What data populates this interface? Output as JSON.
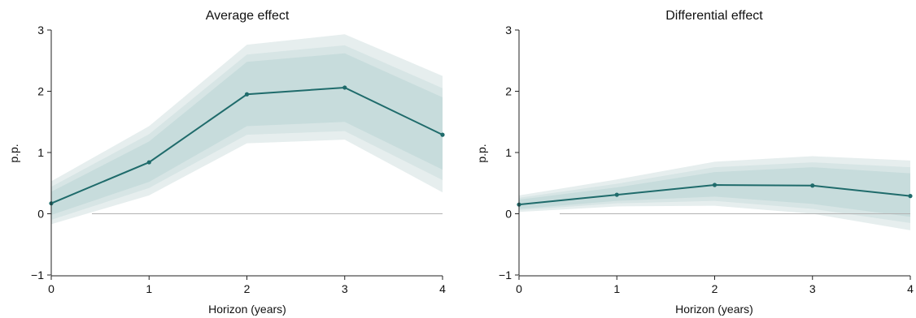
{
  "chart_data": [
    {
      "type": "line",
      "title": "Average effect",
      "xlabel": "Horizon (years)",
      "ylabel": "p.p.",
      "xlim": [
        0,
        4
      ],
      "ylim": [
        -1,
        3
      ],
      "xticks": [
        "0",
        "1",
        "2",
        "3",
        "4"
      ],
      "yticks": [
        "−1",
        "0",
        "1",
        "2",
        "3"
      ],
      "zero_line": true,
      "series": [
        {
          "x": [
            0,
            1,
            2,
            3,
            4
          ],
          "values": [
            0.17,
            0.84,
            1.95,
            2.06,
            1.29
          ],
          "bands": [
            {
              "lower": [
                -0.17,
                0.3,
                1.15,
                1.21,
                0.35
              ],
              "upper": [
                0.53,
                1.43,
                2.76,
                2.93,
                2.25
              ]
            },
            {
              "lower": [
                -0.1,
                0.42,
                1.29,
                1.35,
                0.55
              ],
              "upper": [
                0.44,
                1.3,
                2.6,
                2.75,
                2.05
              ]
            },
            {
              "lower": [
                -0.02,
                0.52,
                1.43,
                1.5,
                0.72
              ],
              "upper": [
                0.36,
                1.18,
                2.48,
                2.62,
                1.9
              ]
            }
          ]
        }
      ]
    },
    {
      "type": "line",
      "title": "Differential effect",
      "xlabel": "Horizon (years)",
      "ylabel": "p.p.",
      "xlim": [
        0,
        4
      ],
      "ylim": [
        -1,
        3
      ],
      "xticks": [
        "0",
        "1",
        "2",
        "3",
        "4"
      ],
      "yticks": [
        "−1",
        "0",
        "1",
        "2",
        "3"
      ],
      "zero_line": true,
      "series": [
        {
          "x": [
            0,
            1,
            2,
            3,
            4
          ],
          "values": [
            0.15,
            0.31,
            0.47,
            0.46,
            0.29
          ],
          "bands": [
            {
              "lower": [
                0.03,
                0.12,
                0.13,
                0.0,
                -0.27
              ],
              "upper": [
                0.3,
                0.56,
                0.85,
                0.94,
                0.87
              ]
            },
            {
              "lower": [
                0.06,
                0.17,
                0.21,
                0.08,
                -0.15
              ],
              "upper": [
                0.26,
                0.49,
                0.76,
                0.84,
                0.76
              ]
            },
            {
              "lower": [
                0.08,
                0.21,
                0.28,
                0.16,
                -0.05
              ],
              "upper": [
                0.23,
                0.43,
                0.68,
                0.76,
                0.66
              ]
            }
          ]
        }
      ]
    }
  ],
  "style": {
    "line_color": "#1f6b6b",
    "band_colors": [
      "#e6eeee",
      "#d7e5e5",
      "#c7dcdc"
    ],
    "zero_line_color": "#b3b3b3",
    "axis_color": "#222222"
  }
}
